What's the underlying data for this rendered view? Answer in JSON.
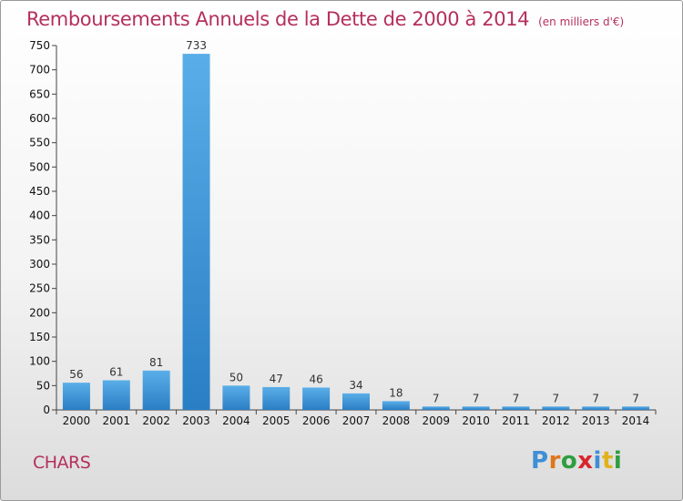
{
  "header": {
    "title": "Remboursements Annuels de la Dette de 2000 à 2014",
    "unit": "(en milliers d'€)"
  },
  "footer": {
    "commune": "CHARS",
    "logo": {
      "letters": [
        "P",
        "r",
        "o",
        "x",
        "i",
        "t",
        "i"
      ],
      "colors": [
        "#3d8fd6",
        "#e0761b",
        "#2e9e3e",
        "#d8262b",
        "#3d8fd6",
        "#e0b21b",
        "#2e9e3e"
      ]
    }
  },
  "chart_data": {
    "type": "bar",
    "title": "Remboursements Annuels de la Dette de 2000 à 2014",
    "subtitle": "(en milliers d'€)",
    "categories": [
      "2000",
      "2001",
      "2002",
      "2003",
      "2004",
      "2005",
      "2006",
      "2007",
      "2008",
      "2009",
      "2010",
      "2011",
      "2012",
      "2013",
      "2014"
    ],
    "values": [
      56,
      61,
      81,
      733,
      50,
      47,
      46,
      34,
      18,
      7,
      7,
      7,
      7,
      7,
      7
    ],
    "ylim": [
      0,
      750
    ],
    "yticks": [
      0,
      50,
      100,
      150,
      200,
      250,
      300,
      350,
      400,
      450,
      500,
      550,
      600,
      650,
      700,
      750
    ],
    "grid": false,
    "colors": {
      "bar_light": "#5aaee8",
      "bar_dark": "#2a7ec4",
      "title": "#b5305c"
    }
  }
}
